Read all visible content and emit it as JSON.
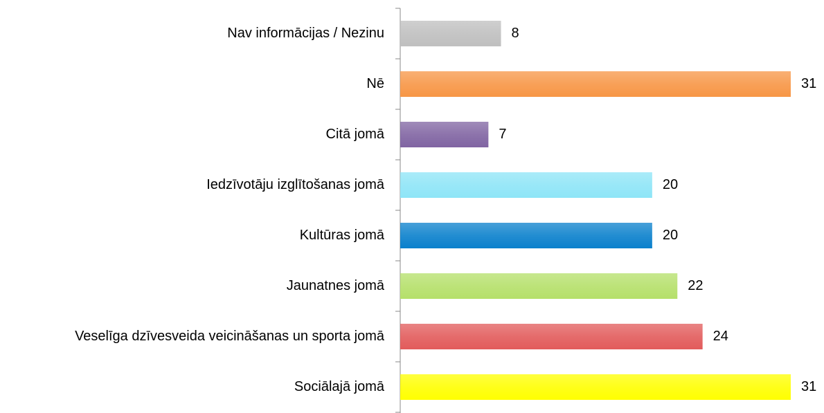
{
  "chart_data": {
    "type": "bar",
    "orientation": "horizontal",
    "categories": [
      "Nav informācijas  / Nezinu",
      "Nē",
      "Citā jomā",
      "Iedzīvotāju izglītošanas jomā",
      "Kultūras jomā",
      "Jaunatnes jomā",
      "Veselīga dzīvesveida veicināšanas un sporta jomā",
      "Sociālajā jomā"
    ],
    "values": [
      8,
      31,
      7,
      20,
      20,
      22,
      24,
      31
    ],
    "colors": [
      "#bfbfbf",
      "#f79646",
      "#8064a2",
      "#8ee5f7",
      "#0a80cc",
      "#b5e06a",
      "#e25b5b",
      "#ffff00"
    ]
  }
}
